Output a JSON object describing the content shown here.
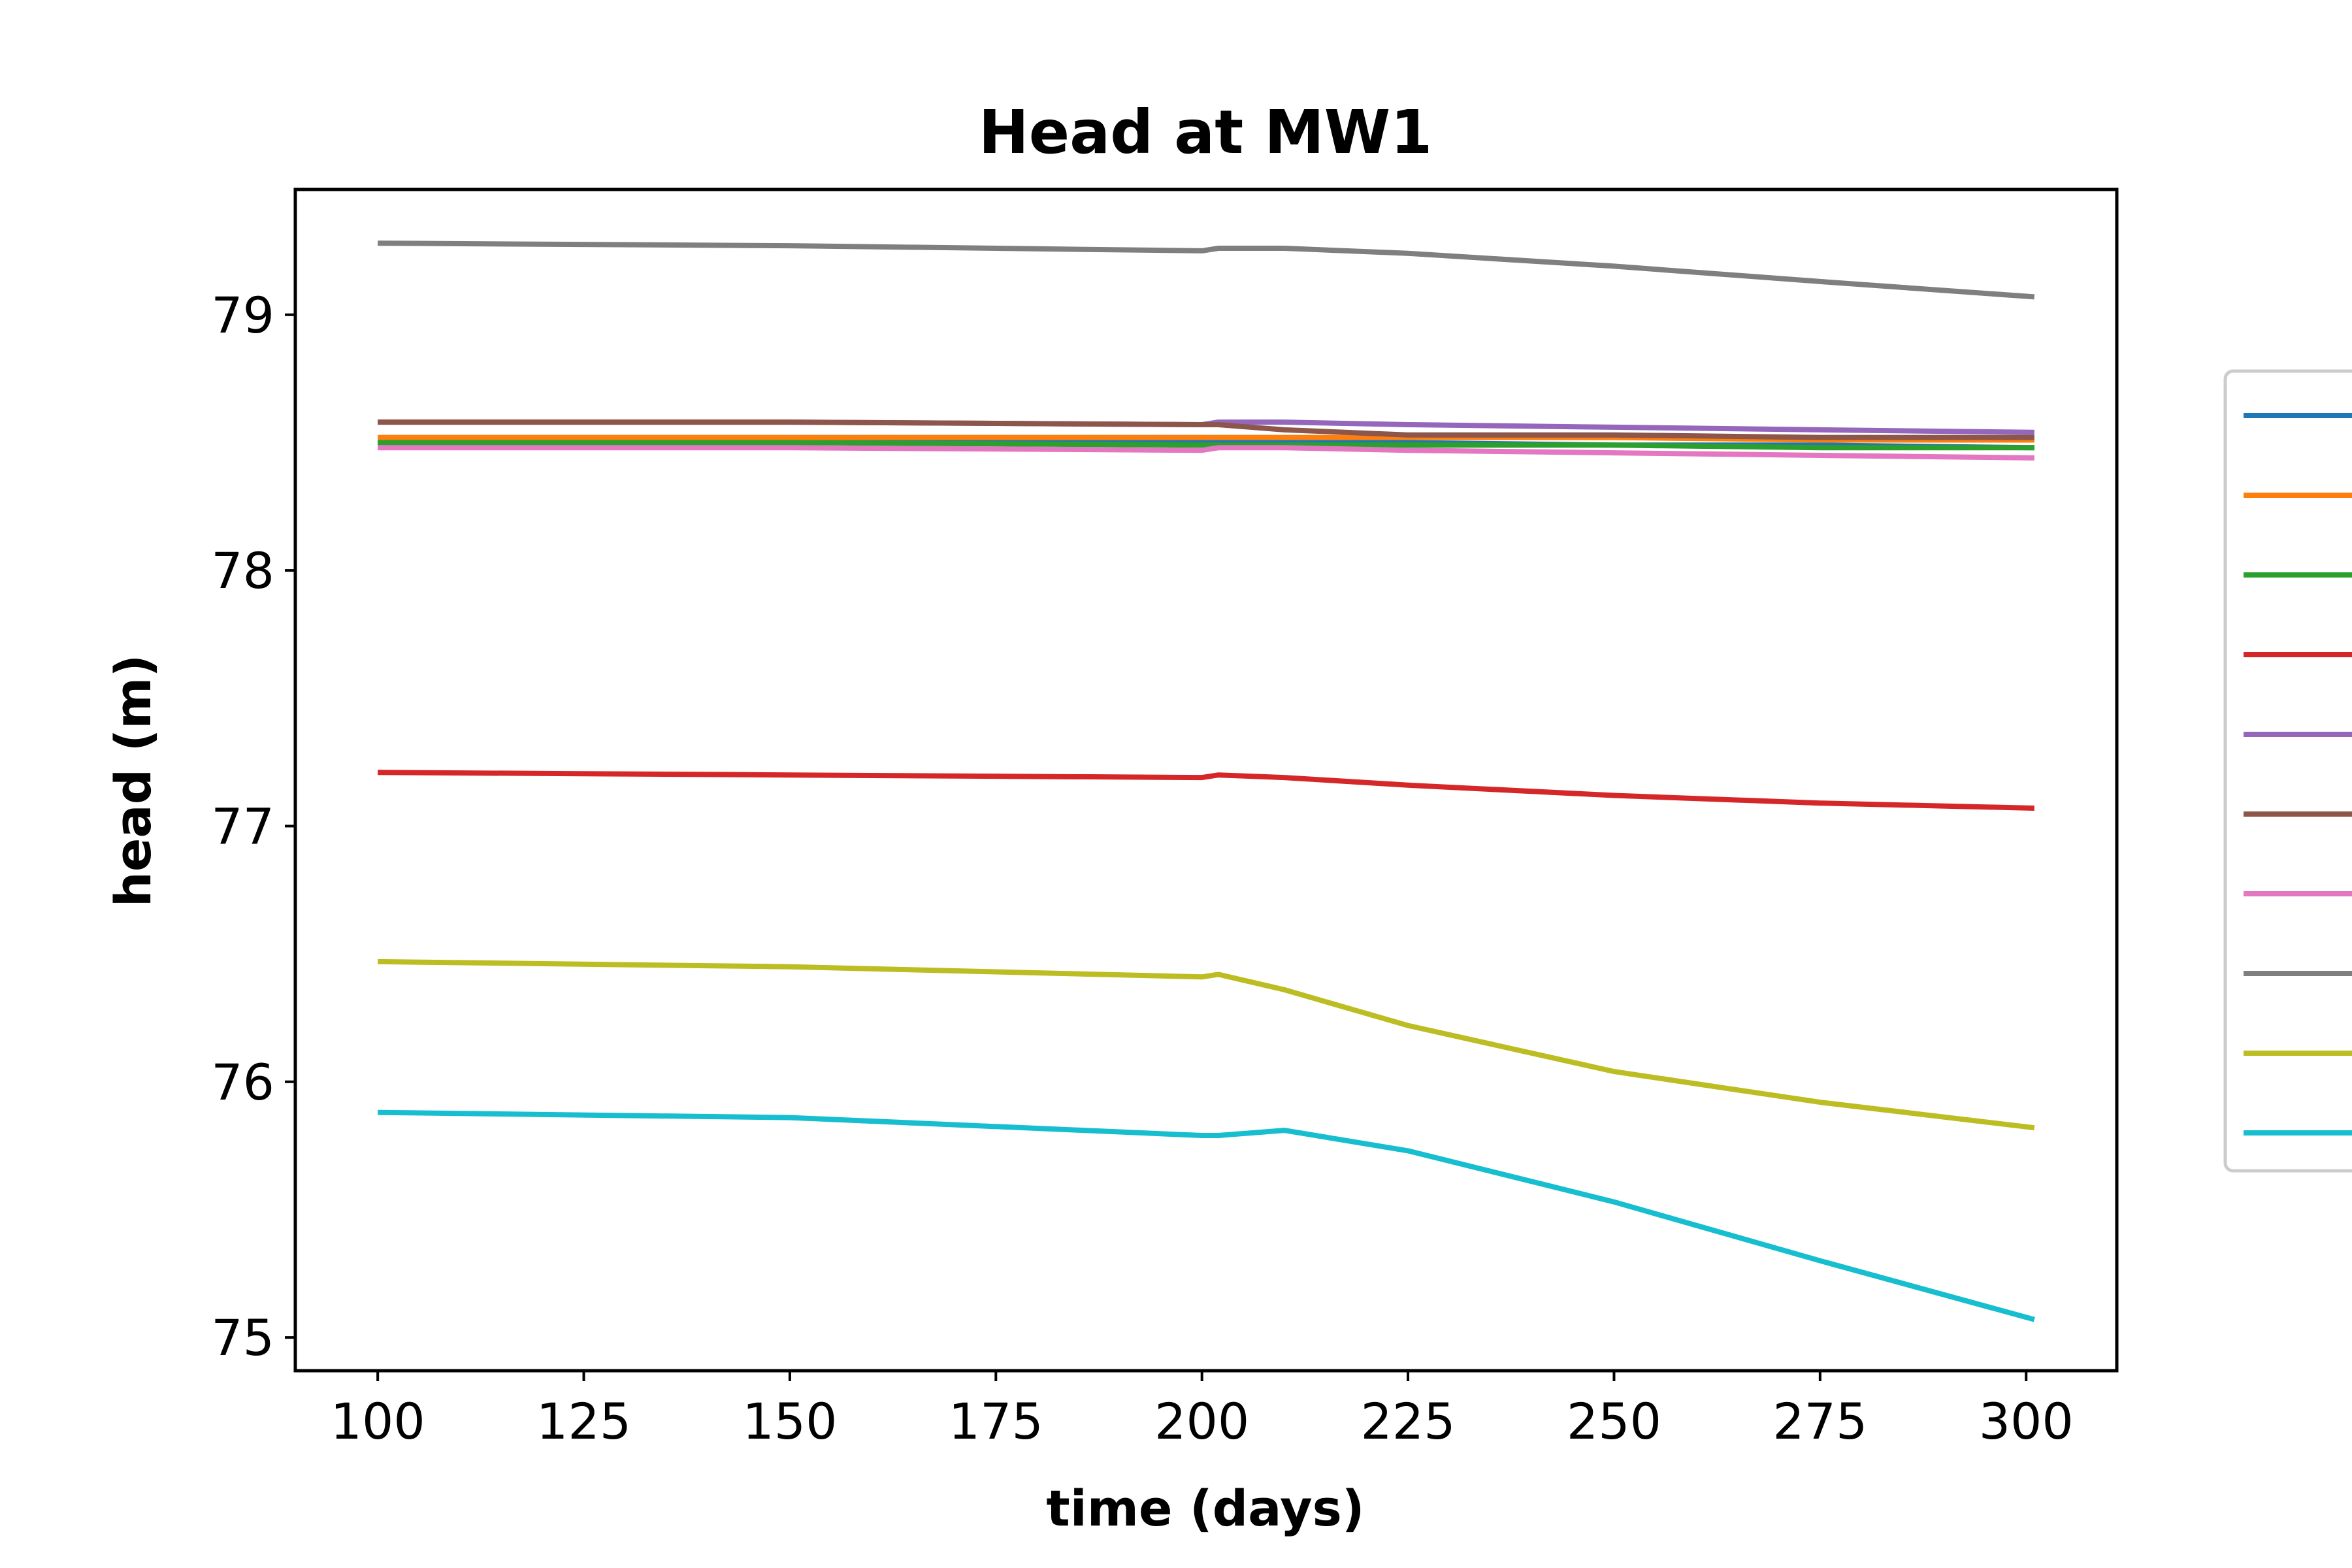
{
  "chart_data": {
    "type": "line",
    "title": "Head at MW1",
    "xlabel": "time (days)",
    "ylabel": "head (m)",
    "xlim": [
      90,
      311
    ],
    "ylim": [
      74.87,
      79.49
    ],
    "xticks": [
      100,
      125,
      150,
      175,
      200,
      225,
      250,
      275,
      300
    ],
    "yticks": [
      75,
      76,
      77,
      78,
      79
    ],
    "grid": false,
    "legend": "right",
    "x": [
      100,
      150,
      200,
      202,
      210,
      225,
      250,
      275,
      301
    ],
    "series": [
      {
        "color": "#1f77b4",
        "values": [
          78.5,
          78.5,
          78.5,
          78.5,
          78.5,
          78.5,
          78.49,
          78.49,
          78.48
        ]
      },
      {
        "color": "#ff7f0e",
        "values": [
          78.52,
          78.52,
          78.52,
          78.52,
          78.52,
          78.52,
          78.52,
          78.51,
          78.51
        ]
      },
      {
        "color": "#2ca02c",
        "values": [
          78.5,
          78.5,
          78.49,
          78.49,
          78.49,
          78.49,
          78.49,
          78.48,
          78.48
        ]
      },
      {
        "color": "#d62728",
        "values": [
          77.21,
          77.2,
          77.19,
          77.2,
          77.19,
          77.16,
          77.12,
          77.09,
          77.07
        ]
      },
      {
        "color": "#9467bd",
        "values": [
          78.58,
          78.58,
          78.57,
          78.58,
          78.58,
          78.57,
          78.56,
          78.55,
          78.54
        ]
      },
      {
        "color": "#8c564b",
        "values": [
          78.58,
          78.58,
          78.57,
          78.57,
          78.55,
          78.53,
          78.53,
          78.52,
          78.52
        ]
      },
      {
        "color": "#e377c2",
        "values": [
          78.48,
          78.48,
          78.47,
          78.48,
          78.48,
          78.47,
          78.46,
          78.45,
          78.44
        ]
      },
      {
        "color": "#7f7f7f",
        "values": [
          79.28,
          79.27,
          79.25,
          79.26,
          79.26,
          79.24,
          79.19,
          79.13,
          79.07
        ]
      },
      {
        "color": "#bcbd22",
        "values": [
          76.47,
          76.45,
          76.41,
          76.42,
          76.36,
          76.22,
          76.04,
          75.92,
          75.82
        ]
      },
      {
        "color": "#17becf",
        "values": [
          75.88,
          75.86,
          75.79,
          75.79,
          75.81,
          75.73,
          75.53,
          75.3,
          75.07
        ]
      }
    ]
  }
}
